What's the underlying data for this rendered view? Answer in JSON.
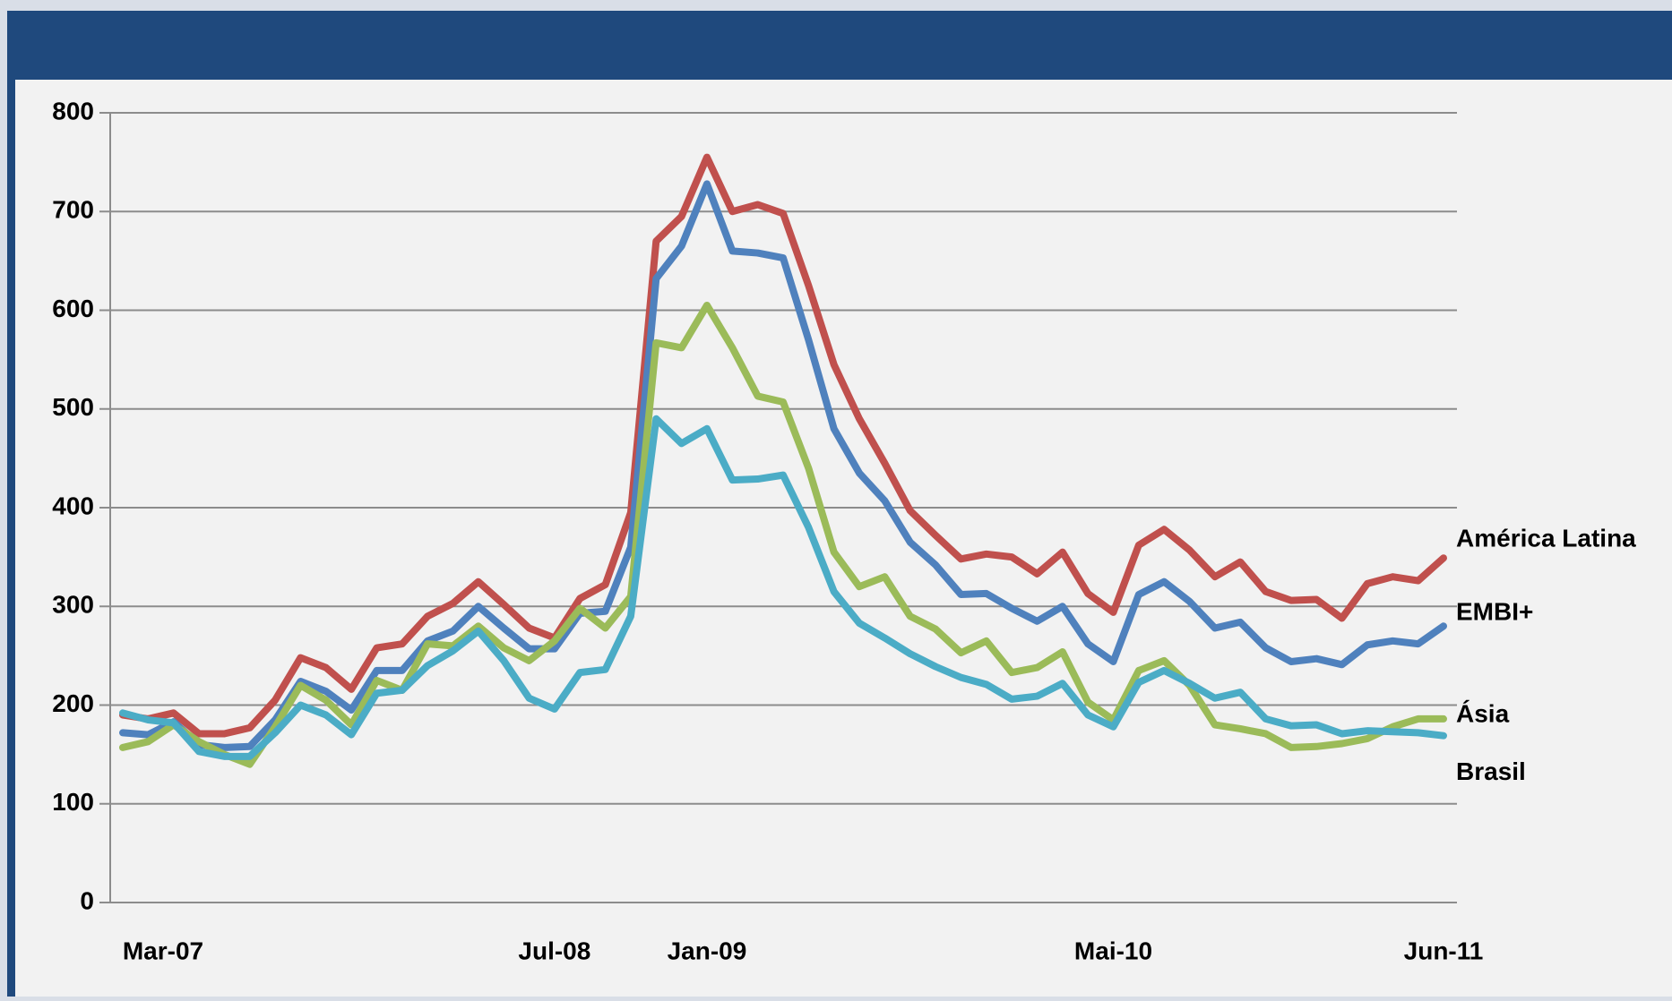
{
  "chart_data": {
    "type": "line",
    "categories": [
      "Mar-07",
      null,
      null,
      null,
      null,
      null,
      null,
      null,
      null,
      null,
      null,
      null,
      null,
      null,
      null,
      null,
      null,
      "Jul-08",
      null,
      null,
      null,
      null,
      null,
      "Jan-09",
      null,
      null,
      null,
      null,
      null,
      null,
      null,
      null,
      null,
      null,
      null,
      null,
      null,
      null,
      null,
      "Mai-10",
      null,
      null,
      null,
      null,
      null,
      null,
      null,
      null,
      null,
      null,
      null,
      null,
      "Jun-11"
    ],
    "series": [
      {
        "name": "América Latina",
        "color": "#c0504d",
        "values": [
          190,
          186,
          192,
          171,
          171,
          177,
          205,
          248,
          238,
          216,
          258,
          262,
          290,
          303,
          325,
          302,
          278,
          268,
          308,
          322,
          395,
          670,
          695,
          755,
          700,
          707,
          698,
          625,
          545,
          490,
          445,
          397,
          372,
          348,
          353,
          350,
          333,
          355,
          313,
          294,
          362,
          378,
          357,
          330,
          345,
          315,
          306,
          307,
          288,
          323,
          330,
          326,
          349
        ]
      },
      {
        "name": "EMBI+",
        "color": "#4f81bd",
        "values": [
          172,
          170,
          183,
          160,
          157,
          158,
          185,
          224,
          214,
          195,
          235,
          235,
          265,
          275,
          300,
          278,
          257,
          257,
          293,
          295,
          360,
          632,
          665,
          728,
          660,
          658,
          653,
          570,
          480,
          435,
          407,
          365,
          342,
          312,
          313,
          298,
          285,
          300,
          262,
          244,
          312,
          325,
          305,
          278,
          284,
          258,
          244,
          247,
          241,
          261,
          265,
          262,
          280
        ]
      },
      {
        "name": "Ásia",
        "color": "#9bbb59",
        "values": [
          157,
          163,
          180,
          163,
          150,
          140,
          178,
          220,
          205,
          180,
          225,
          215,
          262,
          260,
          280,
          258,
          245,
          265,
          298,
          278,
          310,
          567,
          562,
          605,
          562,
          513,
          507,
          440,
          355,
          320,
          330,
          290,
          277,
          253,
          265,
          233,
          238,
          254,
          203,
          185,
          235,
          245,
          220,
          180,
          176,
          171,
          157,
          158,
          161,
          166,
          178,
          186,
          186
        ]
      },
      {
        "name": "Brasil",
        "color": "#4bacc6",
        "values": [
          192,
          185,
          182,
          153,
          148,
          148,
          172,
          200,
          190,
          170,
          212,
          215,
          240,
          255,
          275,
          245,
          207,
          196,
          233,
          236,
          290,
          490,
          465,
          480,
          428,
          429,
          433,
          380,
          315,
          283,
          268,
          252,
          239,
          228,
          221,
          206,
          209,
          222,
          190,
          178,
          223,
          235,
          222,
          207,
          213,
          186,
          179,
          180,
          171,
          174,
          173,
          172,
          169
        ]
      }
    ],
    "ylim": [
      0,
      800
    ],
    "yticks": [
      0,
      100,
      200,
      300,
      400,
      500,
      600,
      700,
      800
    ],
    "grid": true
  }
}
